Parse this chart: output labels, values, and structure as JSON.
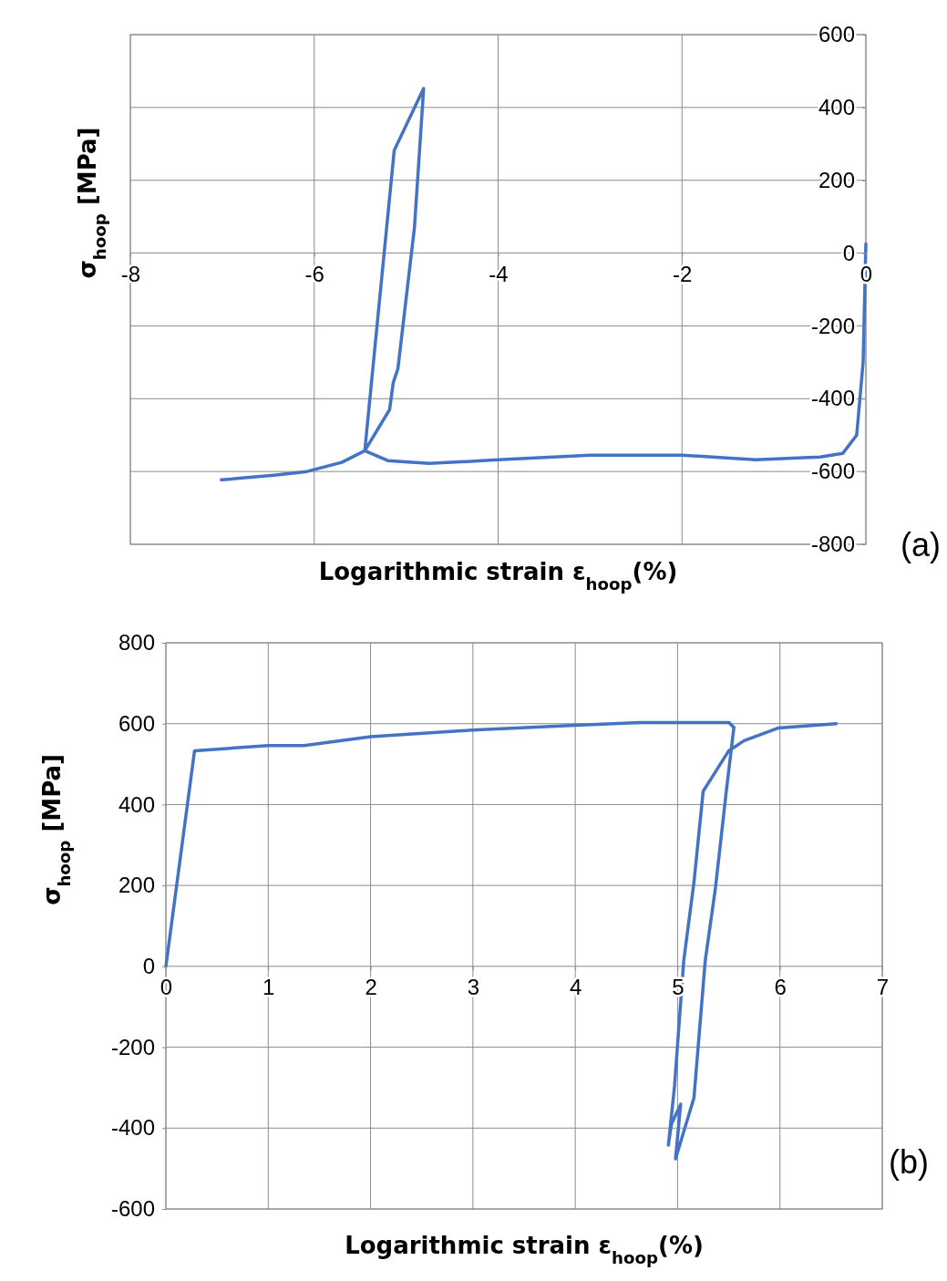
{
  "chart_data": [
    {
      "type": "line",
      "xlabel": "Logarithmic strain ε$_{hoop}$(%)",
      "ylabel": "σ$_{hoop}$ [MPa]",
      "annotations": [
        "(a)"
      ],
      "xlim": [
        -8,
        0
      ],
      "xticks": [
        -8,
        -6,
        -4,
        -2,
        0
      ],
      "ylim": [
        -800,
        600
      ],
      "yticks": [
        -800,
        -600,
        -400,
        -200,
        0,
        200,
        400,
        600
      ],
      "grid": true,
      "marker": "none",
      "line_style": "solid",
      "series": [
        {
          "color": "#4472c4",
          "x": [
            0,
            -0.03,
            -0.1,
            -0.25,
            -0.5,
            -1.2,
            -2,
            -3,
            -4,
            -4.75,
            -5.2,
            -5.45,
            -5.18,
            -5.14,
            -5.09,
            -4.91,
            -4.81,
            -5.13,
            -5.45,
            -5.7,
            -6.08,
            -6.44,
            -7.01
          ],
          "values": [
            25,
            -300,
            -500,
            -550,
            -560,
            -568,
            -555,
            -555,
            -568,
            -578,
            -570,
            -543,
            -430,
            -355,
            -318,
            70,
            452,
            282,
            -543,
            -575,
            -600,
            -610,
            -623
          ]
        }
      ]
    },
    {
      "type": "line",
      "xlabel": "Logarithmic strain ε$_{hoop}$(%)",
      "ylabel": "σ$_{hoop}$ [MPa]",
      "annotations": [
        "(b)"
      ],
      "xlim": [
        0,
        7
      ],
      "xticks": [
        0,
        1,
        2,
        3,
        4,
        5,
        6,
        7
      ],
      "ylim": [
        -600,
        800
      ],
      "yticks": [
        -600,
        -400,
        -200,
        0,
        200,
        400,
        600,
        800
      ],
      "grid": true,
      "marker": "none",
      "line_style": "solid",
      "series": [
        {
          "color": "#4472c4",
          "x": [
            0,
            0.28,
            1,
            1.35,
            2,
            2.99,
            4,
            4.63,
            5.5,
            5.55,
            5.48,
            5.37,
            5.27,
            5.16,
            5.06,
            4.98,
            5.03,
            4.94,
            4.91,
            4.97,
            5.06,
            5.16,
            5.25,
            5.33,
            5.5,
            5.65,
            5.98,
            6.55
          ],
          "values": [
            0,
            533,
            546,
            546,
            568,
            584,
            596,
            603,
            603,
            591,
            442,
            194,
            14,
            -325,
            -409,
            -476,
            -341,
            -390,
            -442,
            -296,
            14,
            208,
            433,
            465,
            533,
            558,
            589,
            600
          ]
        }
      ]
    }
  ]
}
